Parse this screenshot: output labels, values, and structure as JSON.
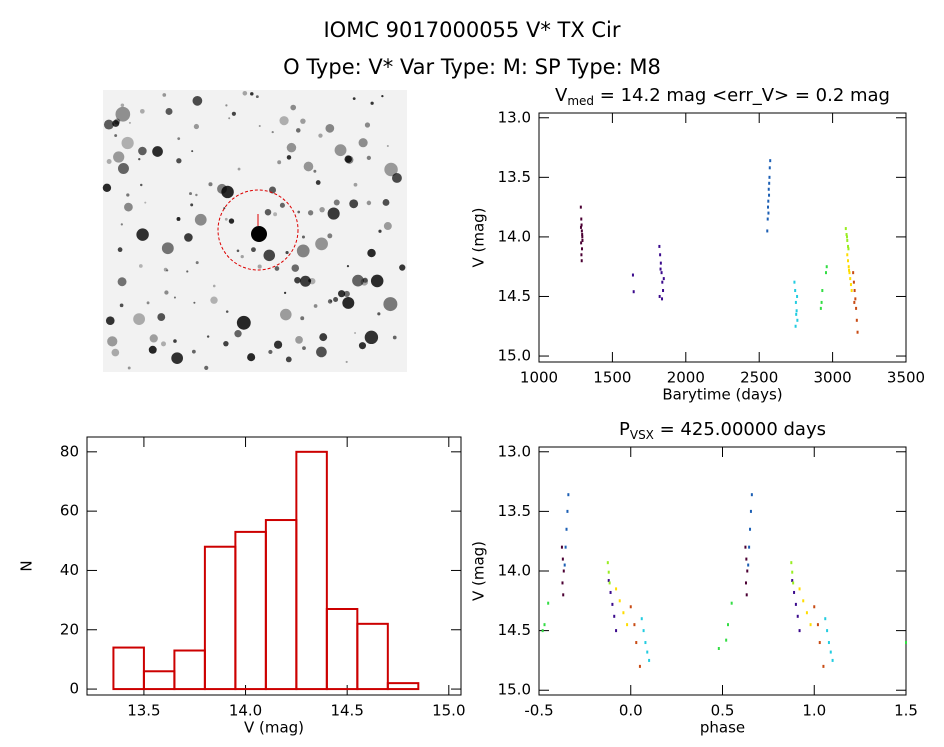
{
  "title": "IOMC 9017000055   V* TX Cir",
  "subtitle": "O Type: V*  Var Type: M:  SP Type: M8",
  "chart_data": [
    {
      "type": "scatter",
      "title": {
        "text": "V",
        "sub": "med",
        "rest": " = 14.2 mag <err_V> = 0.2 mag"
      },
      "x_label": "Barytime (days)",
      "y_label": "V (mag)",
      "xlim": [
        1000,
        3500
      ],
      "ylim": [
        15.05,
        12.96
      ],
      "xticks": [
        1000,
        1500,
        2000,
        2500,
        3000,
        3500
      ],
      "yticks": [
        {
          "value": 13.0,
          "label": "13.0"
        },
        13.5,
        {
          "value": 14.0,
          "label": "14.0"
        },
        14.5,
        {
          "value": 15.0,
          "label": "15.0"
        }
      ],
      "series": [
        {
          "color": "#4b0033",
          "x": [
            1285,
            1288,
            1290,
            1292,
            1295,
            1287,
            1293,
            1289,
            1291,
            1294,
            1286,
            1296
          ],
          "values": [
            13.75,
            13.85,
            13.9,
            13.95,
            14.0,
            14.05,
            14.1,
            14.15,
            14.2,
            13.98,
            13.92,
            14.03
          ]
        },
        {
          "color": "#3b0a8c",
          "x": [
            1640,
            1645,
            1820,
            1825,
            1830,
            1835,
            1840,
            1845,
            1822,
            1828,
            1838,
            1850
          ],
          "values": [
            14.32,
            14.46,
            14.08,
            14.15,
            14.22,
            14.3,
            14.38,
            14.45,
            14.5,
            14.27,
            14.52,
            14.35
          ]
        },
        {
          "color": "#1c5fb4",
          "x": [
            2555,
            2558,
            2560,
            2562,
            2565,
            2568,
            2570,
            2572,
            2575,
            2563,
            2567
          ],
          "values": [
            13.95,
            13.85,
            13.75,
            13.7,
            13.6,
            13.55,
            13.5,
            13.42,
            13.36,
            13.8,
            13.65
          ]
        },
        {
          "color": "#22cce0",
          "x": [
            2740,
            2745,
            2750,
            2755,
            2760,
            2748,
            2752,
            2758
          ],
          "values": [
            14.38,
            14.45,
            14.55,
            14.62,
            14.7,
            14.75,
            14.65,
            14.5
          ]
        },
        {
          "color": "#33dd44",
          "x": [
            2920,
            2925,
            2930,
            2955,
            2960
          ],
          "values": [
            14.6,
            14.55,
            14.45,
            14.3,
            14.25
          ]
        },
        {
          "color": "#99ee22",
          "x": [
            3090,
            3095,
            3100,
            3105,
            3108,
            3098
          ],
          "values": [
            13.93,
            13.98,
            14.03,
            14.08,
            14.1,
            14.0
          ]
        },
        {
          "color": "#ffdd00",
          "x": [
            3100,
            3105,
            3110,
            3115,
            3120,
            3125,
            3130,
            3112
          ],
          "values": [
            14.15,
            14.2,
            14.25,
            14.3,
            14.35,
            14.4,
            14.45,
            14.28
          ]
        },
        {
          "color": "#c84b14",
          "x": [
            3140,
            3145,
            3150,
            3155,
            3160,
            3165,
            3170,
            3148
          ],
          "values": [
            14.3,
            14.38,
            14.45,
            14.52,
            14.6,
            14.7,
            14.8,
            14.55
          ]
        }
      ]
    },
    {
      "type": "histogram",
      "x_label": "V (mag)",
      "y_label": "N",
      "color": "#cc0000",
      "xlim": [
        13.22,
        15.06
      ],
      "ylim": [
        -2,
        85
      ],
      "xticks": [
        13.5,
        {
          "value": 14.0,
          "label": "14.0"
        },
        14.5,
        {
          "value": 15.0,
          "label": "15.0"
        }
      ],
      "yticks": [
        0,
        20,
        40,
        60,
        80
      ],
      "bins": [
        13.35,
        13.5,
        13.65,
        13.8,
        13.95,
        14.1,
        14.25,
        14.4,
        14.55,
        14.7,
        14.85
      ],
      "values": [
        14,
        6,
        13,
        48,
        53,
        57,
        80,
        27,
        22,
        2
      ]
    },
    {
      "type": "scatter",
      "title": {
        "text": "P",
        "sub": "VSX",
        "rest": " = 425.00000 days"
      },
      "x_label": "phase",
      "y_label": "V (mag)",
      "xlim": [
        -0.5,
        1.5
      ],
      "ylim": [
        15.04,
        12.96
      ],
      "xticks": [
        -0.5,
        {
          "value": 0.0,
          "label": "0.0"
        },
        0.5,
        {
          "value": 1.0,
          "label": "1.0"
        },
        1.5
      ],
      "yticks": [
        {
          "value": 13.0,
          "label": "13.0"
        },
        13.5,
        {
          "value": 14.0,
          "label": "14.0"
        },
        14.5,
        {
          "value": 15.0,
          "label": "15.0"
        }
      ],
      "series": [
        {
          "color": "#4b0033",
          "x": [
            -0.375,
            -0.37,
            -0.365,
            -0.372,
            -0.368,
            0.625,
            0.63,
            0.635,
            0.628,
            0.632
          ],
          "values": [
            13.8,
            13.9,
            14.0,
            14.1,
            14.2,
            13.8,
            13.9,
            14.0,
            14.1,
            14.2
          ]
        },
        {
          "color": "#3b0a8c",
          "x": [
            -0.12,
            -0.11,
            -0.1,
            -0.09,
            -0.08,
            0.88,
            0.89,
            0.9,
            0.91,
            0.92
          ],
          "values": [
            14.08,
            14.18,
            14.28,
            14.38,
            14.5,
            14.08,
            14.18,
            14.28,
            14.38,
            14.5
          ]
        },
        {
          "color": "#1c5fb4",
          "x": [
            -0.36,
            -0.355,
            -0.35,
            -0.345,
            -0.34,
            0.64,
            0.645,
            0.65,
            0.655,
            0.66
          ],
          "values": [
            13.95,
            13.8,
            13.65,
            13.5,
            13.36,
            13.95,
            13.8,
            13.65,
            13.5,
            13.36
          ]
        },
        {
          "color": "#22cce0",
          "x": [
            0.06,
            0.07,
            0.08,
            0.09,
            0.1,
            1.06,
            1.07,
            1.08,
            1.09,
            1.1
          ],
          "values": [
            14.4,
            14.5,
            14.6,
            14.68,
            14.75,
            14.4,
            14.5,
            14.6,
            14.68,
            14.75
          ]
        },
        {
          "color": "#33dd44",
          "x": [
            -0.48,
            -0.47,
            -0.45,
            0.48,
            0.52,
            0.53,
            0.55,
            1.5
          ],
          "values": [
            14.5,
            14.45,
            14.27,
            14.65,
            14.58,
            14.45,
            14.27,
            14.6
          ]
        },
        {
          "color": "#99ee22",
          "x": [
            -0.125,
            -0.12,
            -0.115,
            0.875,
            0.88,
            0.885
          ],
          "values": [
            13.93,
            14.01,
            14.1,
            13.93,
            14.01,
            14.1
          ]
        },
        {
          "color": "#ffdd00",
          "x": [
            -0.08,
            -0.06,
            -0.04,
            -0.02,
            0.92,
            0.94,
            0.96,
            0.98
          ],
          "values": [
            14.15,
            14.25,
            14.35,
            14.45,
            14.15,
            14.25,
            14.35,
            14.45
          ]
        },
        {
          "color": "#c84b14",
          "x": [
            0.0,
            0.02,
            0.03,
            0.05,
            1.0,
            1.02,
            1.03,
            1.05
          ],
          "values": [
            14.3,
            14.45,
            14.6,
            14.8,
            14.3,
            14.45,
            14.6,
            14.8
          ]
        }
      ]
    }
  ]
}
